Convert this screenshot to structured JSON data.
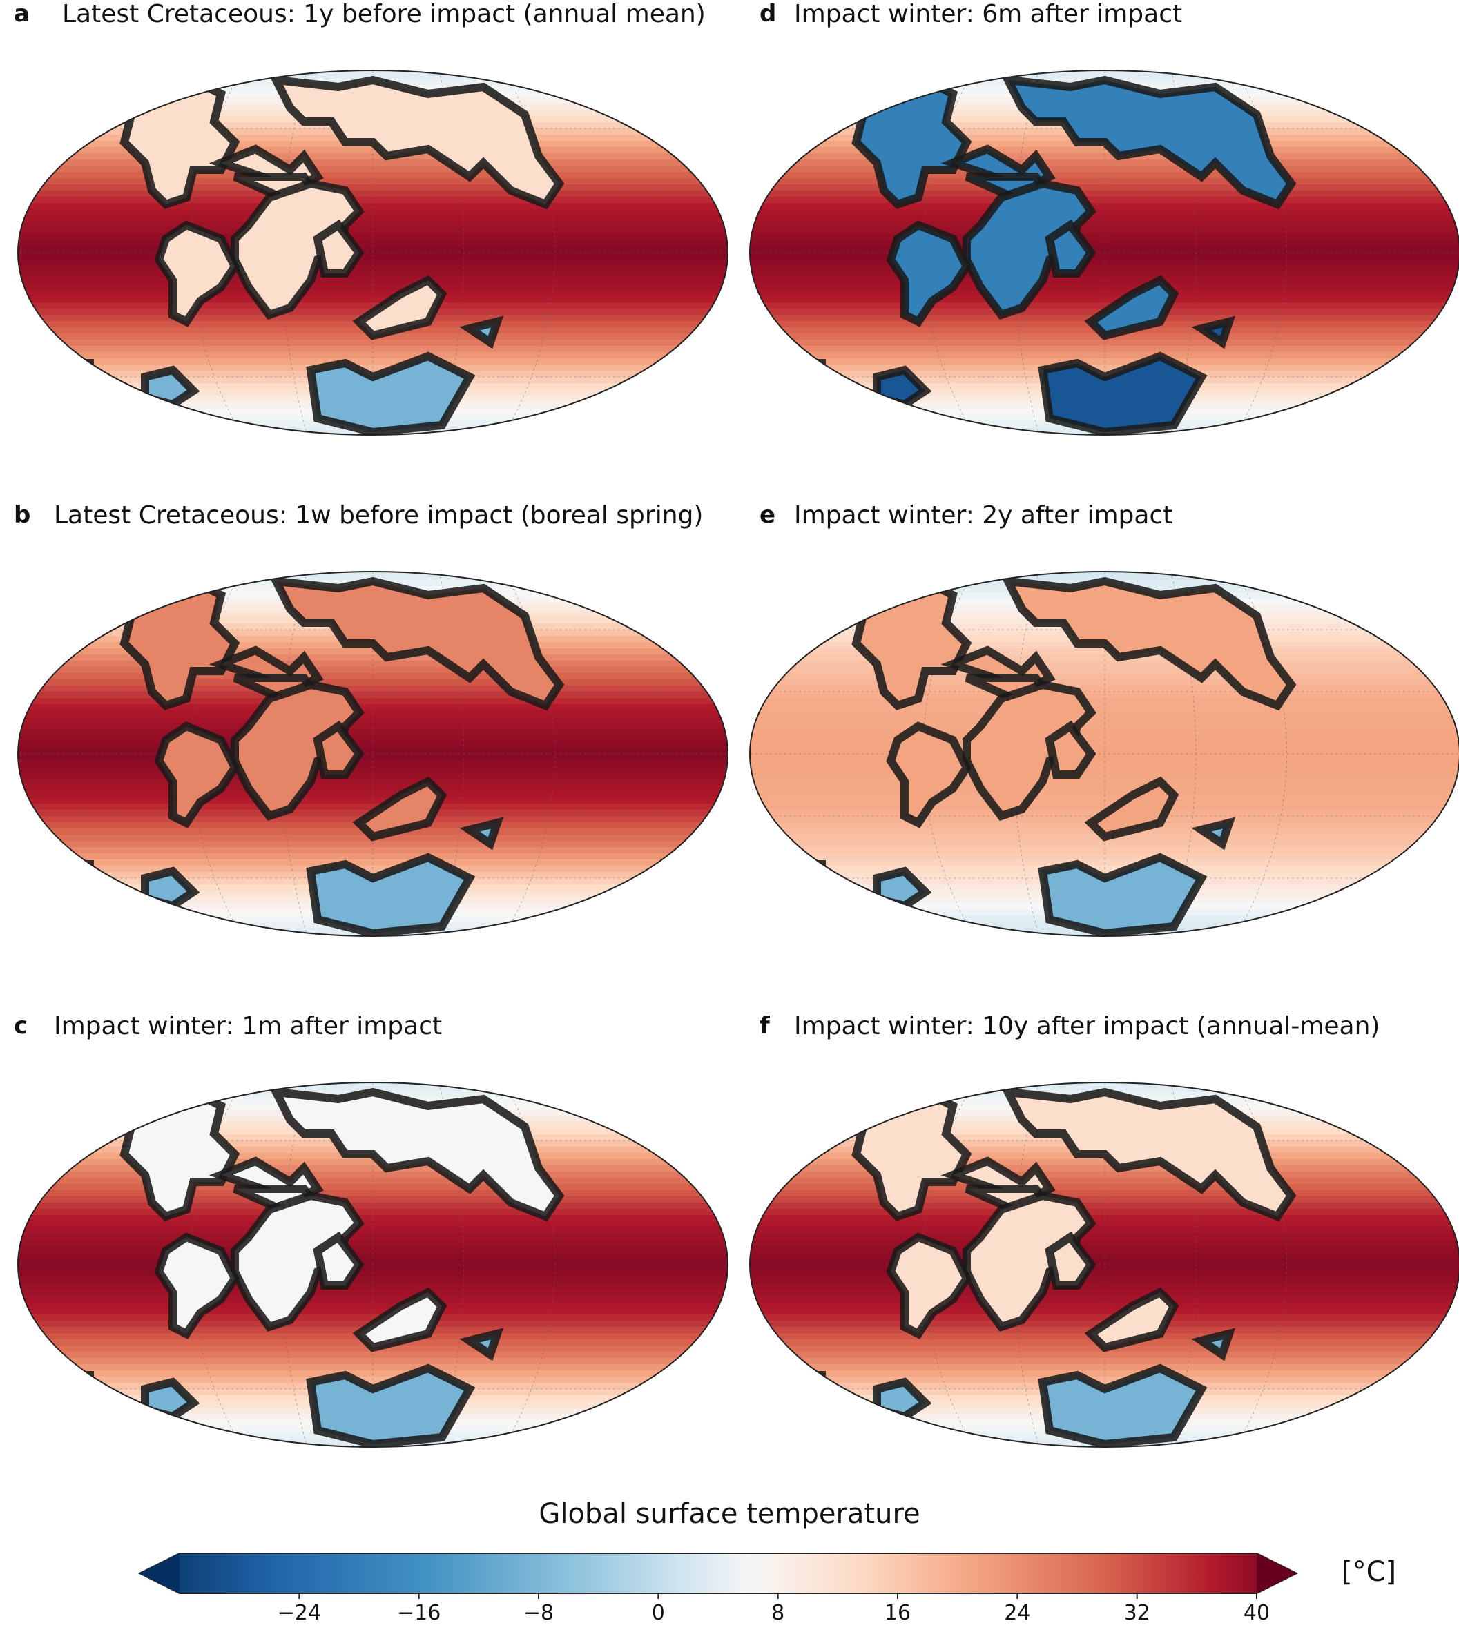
{
  "panels": [
    {
      "letter": "a",
      "title": "Latest Cretaceous: 1y before impact (annual mean)",
      "land": "warm",
      "ocean": "hot"
    },
    {
      "letter": "d",
      "title": "Impact winter: 6m after impact",
      "land": "frozen",
      "ocean": "hot"
    },
    {
      "letter": "b",
      "title": "Latest Cretaceous: 1w before impact (boreal spring)",
      "land": "warmspring",
      "ocean": "hot"
    },
    {
      "letter": "e",
      "title": "Impact winter: 2y after impact",
      "land": "mild",
      "ocean": "mild"
    },
    {
      "letter": "c",
      "title": "Impact winter: 1m after impact",
      "land": "cool",
      "ocean": "hot"
    },
    {
      "letter": "f",
      "title": "Impact winter: 10y after impact (annual-mean)",
      "land": "warm",
      "ocean": "hot"
    }
  ],
  "colorbar": {
    "title": "Global surface temperature",
    "unit": "[°C]",
    "min": -32,
    "max": 40,
    "ticks": [
      -24,
      -16,
      -8,
      0,
      8,
      16,
      24,
      32,
      40
    ],
    "tick_labels": [
      "−24",
      "−16",
      "−8",
      "0",
      "8",
      "16",
      "24",
      "32",
      "40"
    ],
    "colormap": "RdBu_r"
  }
}
